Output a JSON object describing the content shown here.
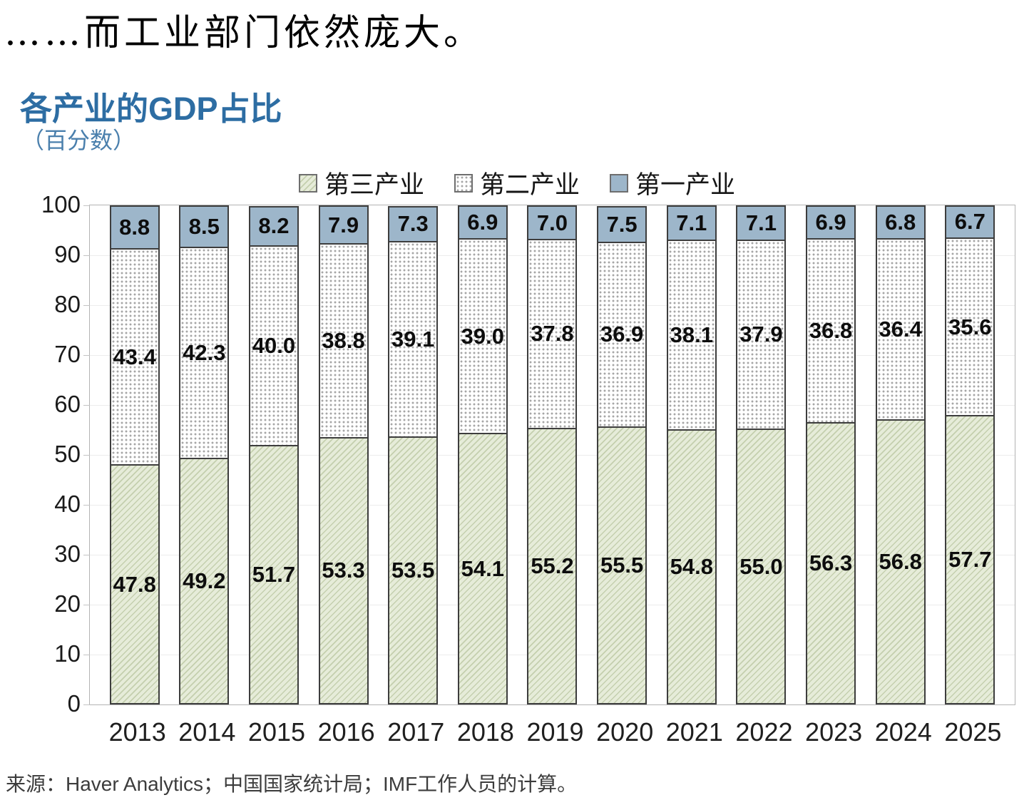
{
  "page": {
    "heading": "……而工业部门依然庞大。",
    "source": "来源：Haver Analytics；中国国家统计局；IMF工作人员的计算。"
  },
  "colors": {
    "title_blue": "#2d6da3",
    "subtitle_blue": "#4b80ad",
    "primary_industry_blue": "#9db6ca",
    "tertiary_industry_green": "#e6ecd9",
    "secondary_industry_white": "#ffffff",
    "segment_border": "#3d3d3d"
  },
  "chart_data": {
    "type": "bar",
    "stacked": true,
    "title": "各产业的GDP占比",
    "subtitle": "（百分数）",
    "categories": [
      "2013",
      "2014",
      "2015",
      "2016",
      "2017",
      "2018",
      "2019",
      "2020",
      "2021",
      "2022",
      "2023",
      "2024",
      "2025"
    ],
    "series": [
      {
        "name": "第三产业",
        "pattern": "diagonal-hatch",
        "color": "#e6ecd9",
        "values": [
          47.8,
          49.2,
          51.7,
          53.3,
          53.5,
          54.1,
          55.2,
          55.5,
          54.8,
          55.0,
          56.3,
          56.8,
          57.7
        ]
      },
      {
        "name": "第二产业",
        "pattern": "dots",
        "color": "#ffffff",
        "values": [
          43.4,
          42.3,
          40.0,
          38.8,
          39.1,
          39.0,
          37.8,
          36.9,
          38.1,
          37.9,
          36.8,
          36.4,
          35.6
        ]
      },
      {
        "name": "第一产业",
        "pattern": "solid",
        "color": "#9db6ca",
        "values": [
          8.8,
          8.5,
          8.2,
          7.9,
          7.3,
          6.9,
          7.0,
          7.5,
          7.1,
          7.1,
          6.9,
          6.8,
          6.7
        ]
      }
    ],
    "legend_position": "top",
    "legend_order": [
      "第三产业",
      "第二产业",
      "第一产业"
    ],
    "ylim": [
      0,
      100
    ],
    "yticks": [
      0,
      10,
      20,
      30,
      40,
      50,
      60,
      70,
      80,
      90,
      100
    ],
    "value_format": "one-decimal",
    "grid": "faint-horizontal"
  }
}
